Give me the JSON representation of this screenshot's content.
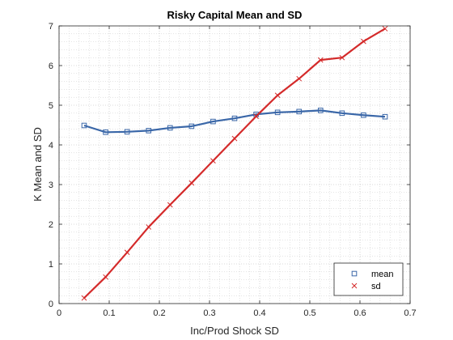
{
  "chart_data": {
    "type": "line",
    "title": "Risky Capital Mean and SD",
    "xlabel": "Inc/Prod Shock SD",
    "ylabel": "K Mean and SD",
    "xlim": [
      0,
      0.7
    ],
    "ylim": [
      0,
      7
    ],
    "xticks": [
      "0",
      "0.1",
      "0.2",
      "0.3",
      "0.4",
      "0.5",
      "0.6",
      "0.7"
    ],
    "yticks": [
      "0",
      "1",
      "2",
      "3",
      "4",
      "5",
      "6",
      "7"
    ],
    "grid": true,
    "minor_grid": true,
    "legend_position": "bottom-right",
    "x": [
      0.05,
      0.0929,
      0.1357,
      0.1786,
      0.2214,
      0.2643,
      0.3071,
      0.35,
      0.3929,
      0.4357,
      0.4786,
      0.5214,
      0.5643,
      0.6071,
      0.65
    ],
    "series": [
      {
        "name": "mean",
        "color": "#3a67a8",
        "marker": "square",
        "values": [
          4.49,
          4.32,
          4.33,
          4.36,
          4.43,
          4.47,
          4.59,
          4.67,
          4.77,
          4.82,
          4.84,
          4.87,
          4.8,
          4.75,
          4.71
        ]
      },
      {
        "name": "sd",
        "color": "#d42a2a",
        "marker": "x",
        "values": [
          0.14,
          0.67,
          1.29,
          1.93,
          2.49,
          3.04,
          3.6,
          4.16,
          4.72,
          5.25,
          5.67,
          6.14,
          6.2,
          6.61,
          6.93
        ]
      }
    ]
  }
}
